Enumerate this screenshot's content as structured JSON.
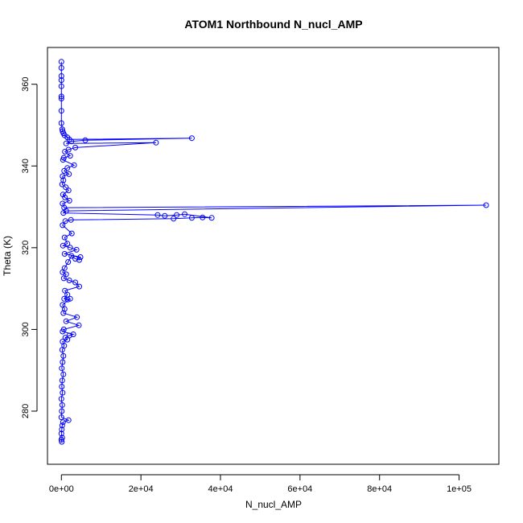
{
  "chart_data": {
    "type": "line",
    "title": "ATOM1 Northbound N_nucl_AMP",
    "xlabel": "N_nucl_AMP",
    "ylabel": "Theta (K)",
    "xlim": [
      -3500,
      110000
    ],
    "ylim": [
      267,
      369
    ],
    "x_ticks": [
      0,
      20000,
      40000,
      60000,
      80000,
      100000
    ],
    "x_tick_labels": [
      "0e+00",
      "2e+04",
      "4e+04",
      "6e+04",
      "8e+04",
      "1e+05"
    ],
    "y_ticks": [
      280,
      300,
      320,
      340,
      360
    ],
    "y_tick_labels": [
      "280",
      "300",
      "320",
      "340",
      "360"
    ],
    "grid": false,
    "series": [
      {
        "color": "#0000ff",
        "marker": "open-circle",
        "line": true,
        "points": [
          [
            0,
            365.5
          ],
          [
            0,
            364
          ],
          [
            0,
            362
          ],
          [
            0,
            361
          ],
          [
            0,
            359.5
          ],
          [
            0,
            357
          ],
          [
            0,
            356.5
          ],
          [
            0,
            353.5
          ],
          [
            0,
            350.5
          ],
          [
            200,
            349
          ],
          [
            300,
            348.5
          ],
          [
            500,
            348
          ],
          [
            800,
            347.5
          ],
          [
            1500,
            347
          ],
          [
            2000,
            346.5
          ],
          [
            32800,
            346.8
          ],
          [
            6000,
            346.3
          ],
          [
            2500,
            346
          ],
          [
            1200,
            345.5
          ],
          [
            23800,
            345.7
          ],
          [
            3500,
            344.5
          ],
          [
            1800,
            344
          ],
          [
            900,
            343.5
          ],
          [
            2200,
            342.5
          ],
          [
            600,
            342
          ],
          [
            400,
            341.5
          ],
          [
            3200,
            340.2
          ],
          [
            1500,
            339.5
          ],
          [
            700,
            338.8
          ],
          [
            1900,
            338
          ],
          [
            300,
            337.5
          ],
          [
            500,
            336.5
          ],
          [
            200,
            335.5
          ],
          [
            1100,
            334.8
          ],
          [
            1800,
            334
          ],
          [
            400,
            333
          ],
          [
            900,
            332.3
          ],
          [
            2000,
            331.5
          ],
          [
            300,
            330.8
          ],
          [
            700,
            329.8
          ],
          [
            106800,
            330.4
          ],
          [
            1200,
            329
          ],
          [
            500,
            328.5
          ],
          [
            24200,
            328
          ],
          [
            26000,
            327.8
          ],
          [
            29000,
            328
          ],
          [
            31000,
            328.2
          ],
          [
            37800,
            327.3
          ],
          [
            35500,
            327.4
          ],
          [
            32800,
            327.3
          ],
          [
            28200,
            327.1
          ],
          [
            2400,
            326.8
          ],
          [
            1000,
            326.5
          ],
          [
            300,
            325.5
          ],
          [
            2600,
            323.5
          ],
          [
            800,
            322.5
          ],
          [
            1500,
            321
          ],
          [
            400,
            320.5
          ],
          [
            2200,
            320
          ],
          [
            3800,
            319.5
          ],
          [
            800,
            318.5
          ],
          [
            4800,
            317.7
          ],
          [
            4500,
            317
          ],
          [
            3500,
            317.3
          ],
          [
            2500,
            318
          ],
          [
            1700,
            316.5
          ],
          [
            800,
            315
          ],
          [
            300,
            314
          ],
          [
            1200,
            313.5
          ],
          [
            600,
            312.5
          ],
          [
            2000,
            312
          ],
          [
            3500,
            311.5
          ],
          [
            4500,
            310.5
          ],
          [
            900,
            309.5
          ],
          [
            1500,
            308.5
          ],
          [
            700,
            307.5
          ],
          [
            1600,
            307.3
          ],
          [
            2200,
            307.5
          ],
          [
            300,
            306
          ],
          [
            800,
            305
          ],
          [
            500,
            304
          ],
          [
            3900,
            303
          ],
          [
            1200,
            302
          ],
          [
            4400,
            301
          ],
          [
            600,
            300
          ],
          [
            300,
            299.5
          ],
          [
            3000,
            298.8
          ],
          [
            2000,
            298.5
          ],
          [
            1000,
            298
          ],
          [
            1500,
            297.5
          ],
          [
            300,
            297
          ],
          [
            700,
            296
          ],
          [
            200,
            295
          ],
          [
            500,
            293.5
          ],
          [
            300,
            292
          ],
          [
            100,
            290.5
          ],
          [
            500,
            289
          ],
          [
            200,
            287.5
          ],
          [
            100,
            286
          ],
          [
            300,
            284.5
          ],
          [
            0,
            283
          ],
          [
            200,
            281.5
          ],
          [
            100,
            280
          ],
          [
            0,
            278.5
          ],
          [
            1800,
            277.8
          ],
          [
            400,
            277.3
          ],
          [
            200,
            276.5
          ],
          [
            100,
            275.5
          ],
          [
            0,
            274.5
          ],
          [
            200,
            273.5
          ],
          [
            0,
            273
          ],
          [
            100,
            272.5
          ]
        ]
      }
    ]
  }
}
